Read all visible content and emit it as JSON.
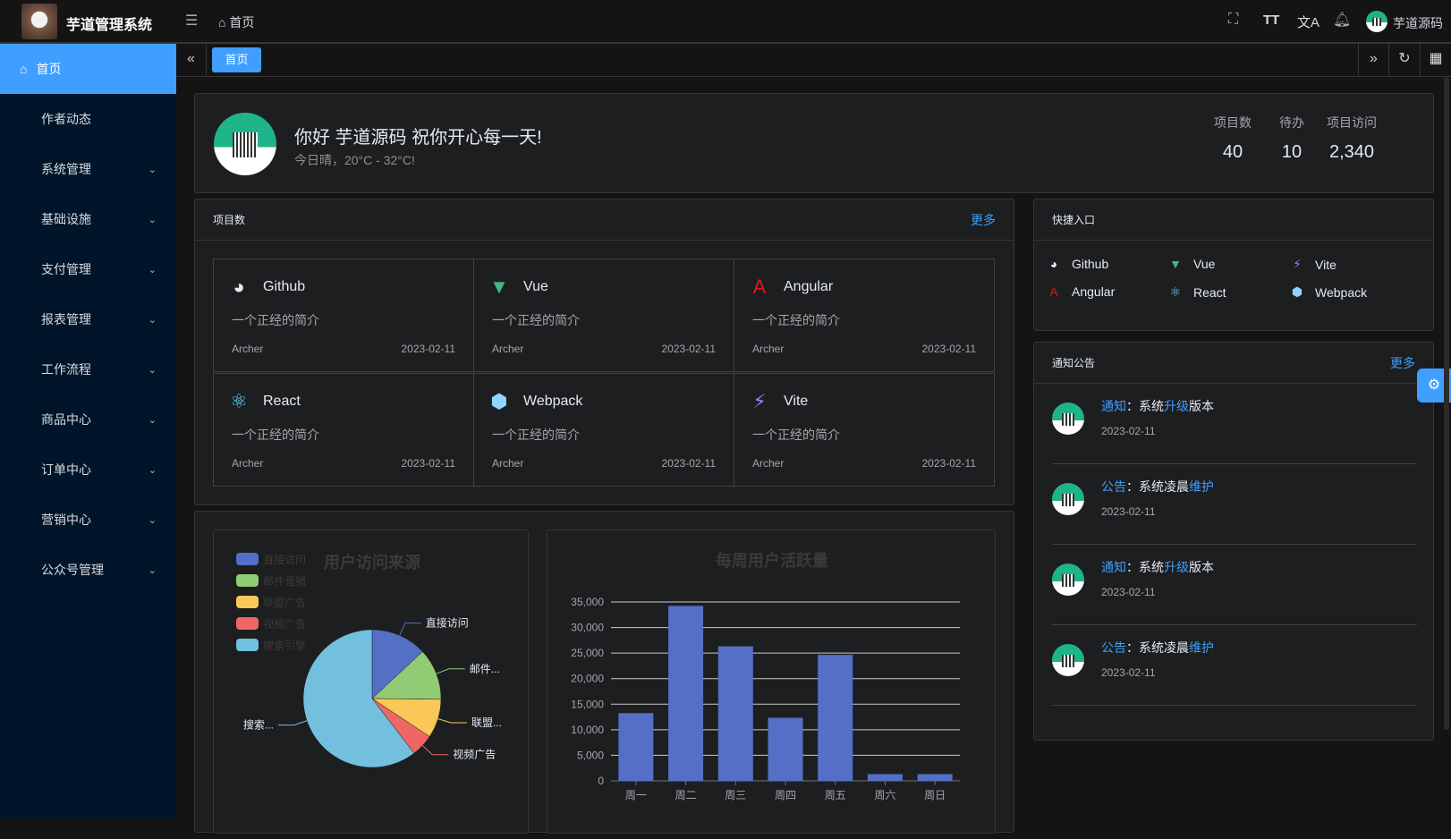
{
  "header": {
    "title": "芋道管理系统",
    "breadcrumb": "首页",
    "user": "芋道源码",
    "icons": [
      "menu-fold-icon",
      "home-icon",
      "fullscreen-icon",
      "font-size-icon",
      "translate-icon",
      "bell-icon"
    ]
  },
  "sidebar": {
    "items": [
      {
        "label": "首页",
        "active": true
      },
      {
        "label": "作者动态"
      },
      {
        "label": "系统管理",
        "expand": true
      },
      {
        "label": "基础设施",
        "expand": true
      },
      {
        "label": "支付管理",
        "expand": true
      },
      {
        "label": "报表管理",
        "expand": true
      },
      {
        "label": "工作流程",
        "expand": true
      },
      {
        "label": "商品中心",
        "expand": true
      },
      {
        "label": "订单中心",
        "expand": true
      },
      {
        "label": "营销中心",
        "expand": true
      },
      {
        "label": "公众号管理",
        "expand": true
      }
    ]
  },
  "tabs": {
    "items": [
      "首页"
    ]
  },
  "welcome": {
    "greeting": "你好 芋道源码 祝你开心每一天!",
    "weather": "今日晴，20°C - 32°C!",
    "stats": [
      {
        "label": "项目数",
        "value": "40"
      },
      {
        "label": "待办",
        "value": "10"
      },
      {
        "label": "项目访问",
        "value": "2,340"
      }
    ]
  },
  "projects": {
    "title": "项目数",
    "more": "更多",
    "items": [
      {
        "name": "Github",
        "icon": "github-icon",
        "color": "#e5eaf3",
        "desc": "一个正经的简介",
        "author": "Archer",
        "date": "2023-02-11"
      },
      {
        "name": "Vue",
        "icon": "vue-icon",
        "color": "#42b883",
        "desc": "一个正经的简介",
        "author": "Archer",
        "date": "2023-02-11"
      },
      {
        "name": "Angular",
        "icon": "angular-icon",
        "color": "#dd1b16",
        "desc": "一个正经的简介",
        "author": "Archer",
        "date": "2023-02-11"
      },
      {
        "name": "React",
        "icon": "react-icon",
        "color": "#61dafb",
        "desc": "一个正经的简介",
        "author": "Archer",
        "date": "2023-02-11"
      },
      {
        "name": "Webpack",
        "icon": "webpack-icon",
        "color": "#8ed6fb",
        "desc": "一个正经的简介",
        "author": "Archer",
        "date": "2023-02-11"
      },
      {
        "name": "Vite",
        "icon": "vite-icon",
        "color": "#a97bff",
        "desc": "一个正经的简介",
        "author": "Archer",
        "date": "2023-02-11"
      }
    ]
  },
  "quick": {
    "title": "快捷入口",
    "items": [
      {
        "name": "Github",
        "color": "#e5eaf3"
      },
      {
        "name": "Vue",
        "color": "#42b883"
      },
      {
        "name": "Vite",
        "color": "#a97bff"
      },
      {
        "name": "Angular",
        "color": "#dd1b16"
      },
      {
        "name": "React",
        "color": "#61dafb"
      },
      {
        "name": "Webpack",
        "color": "#8ed6fb"
      }
    ]
  },
  "notice": {
    "title": "通知公告",
    "more": "更多",
    "items": [
      {
        "type": "通知",
        "sep": "：",
        "a": "系统",
        "b": "升级",
        "c": "版本",
        "date": "2023-02-11"
      },
      {
        "type": "公告",
        "sep": "：",
        "a": "系统凌晨",
        "b": "维护",
        "c": "",
        "date": "2023-02-11"
      },
      {
        "type": "通知",
        "sep": "：",
        "a": "系统",
        "b": "升级",
        "c": "版本",
        "date": "2023-02-11"
      },
      {
        "type": "公告",
        "sep": "：",
        "a": "系统凌晨",
        "b": "维护",
        "c": "",
        "date": "2023-02-11"
      }
    ]
  },
  "colors": {
    "accent": "#409eff",
    "sidebar": "#001529"
  },
  "chart_data": [
    {
      "type": "pie",
      "title": "用户访问来源",
      "legend_position": "top-left",
      "categories": [
        "直接访问",
        "邮件营销",
        "联盟广告",
        "视频广告",
        "搜索引擎"
      ],
      "labels": [
        "直接访问",
        "邮件...",
        "联盟...",
        "视频广告",
        "搜索..."
      ],
      "values": [
        335,
        310,
        234,
        135,
        1548
      ],
      "colors": [
        "#5470c6",
        "#91cc75",
        "#fac858",
        "#ee6666",
        "#73c0de"
      ]
    },
    {
      "type": "bar",
      "title": "每周用户活跃量",
      "categories": [
        "周一",
        "周二",
        "周三",
        "周四",
        "周五",
        "周六",
        "周日"
      ],
      "values": [
        13253,
        34235,
        26321,
        12340,
        24643,
        1322,
        1324
      ],
      "ylim": [
        0,
        35000
      ],
      "yticks": [
        "0",
        "5,000",
        "10,000",
        "15,000",
        "20,000",
        "25,000",
        "30,000",
        "35,000"
      ],
      "grid": true,
      "color": "#5470c6"
    }
  ]
}
